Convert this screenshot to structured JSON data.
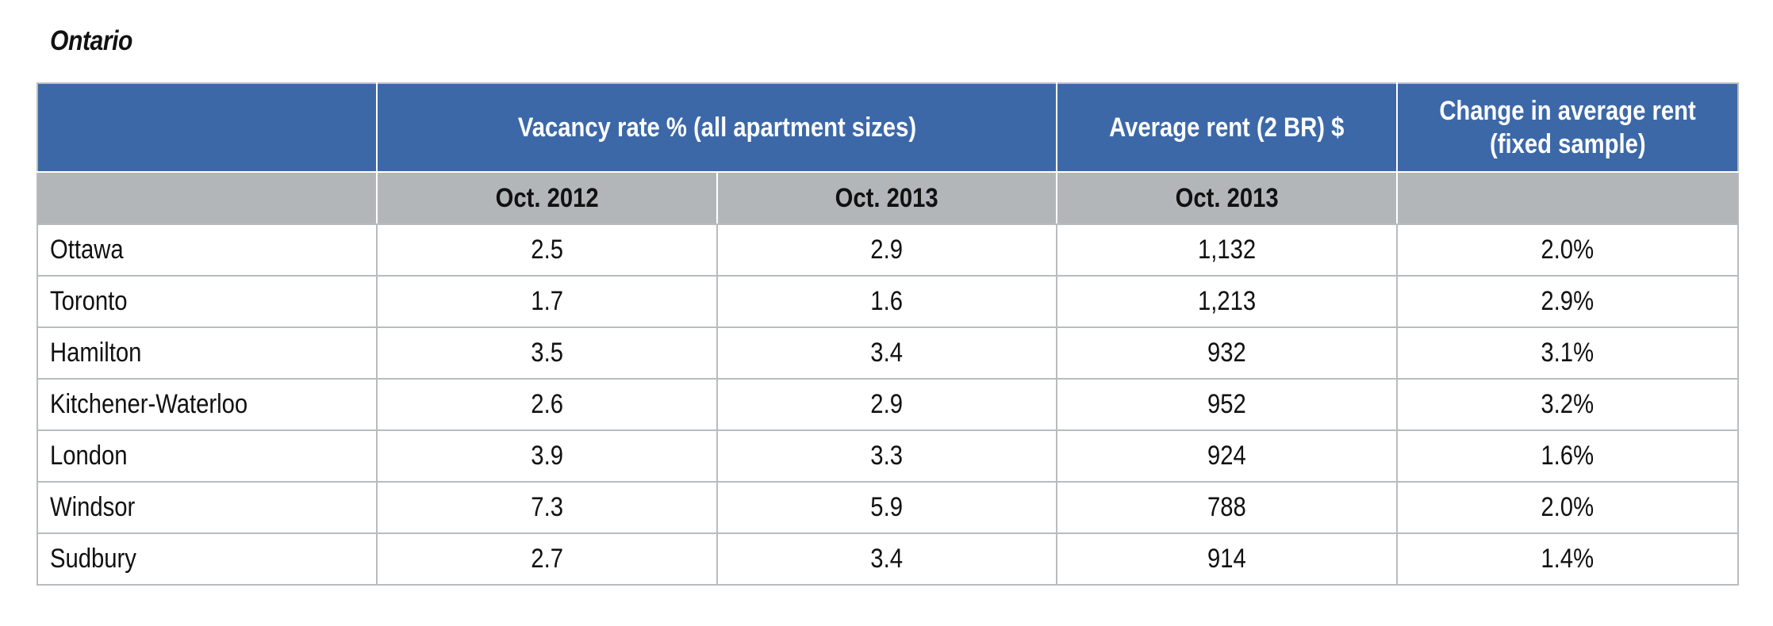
{
  "title": "Ontario",
  "header": {
    "col_city": "",
    "vacancy": "Vacancy rate % (all apartment sizes)",
    "rent": "Average rent (2 BR) $",
    "change_line1": "Change in average rent",
    "change_line2": "(fixed sample)"
  },
  "subheader": {
    "col_city": "",
    "vac_2012": "Oct. 2012",
    "vac_2013": "Oct. 2013",
    "rent_2013": "Oct. 2013",
    "change": ""
  },
  "rows": [
    {
      "city": "Ottawa",
      "vac_2012": "2.5",
      "vac_2013": "2.9",
      "rent": "1,132",
      "change": "2.0%"
    },
    {
      "city": "Toronto",
      "vac_2012": "1.7",
      "vac_2013": "1.6",
      "rent": "1,213",
      "change": "2.9%"
    },
    {
      "city": "Hamilton",
      "vac_2012": "3.5",
      "vac_2013": "3.4",
      "rent": "932",
      "change": "3.1%"
    },
    {
      "city": "Kitchener-Waterloo",
      "vac_2012": "2.6",
      "vac_2013": "2.9",
      "rent": "952",
      "change": "3.2%"
    },
    {
      "city": "London",
      "vac_2012": "3.9",
      "vac_2013": "3.3",
      "rent": "924",
      "change": "1.6%"
    },
    {
      "city": "Windsor",
      "vac_2012": "7.3",
      "vac_2013": "5.9",
      "rent": "788",
      "change": "2.0%"
    },
    {
      "city": "Sudbury",
      "vac_2012": "2.7",
      "vac_2013": "3.4",
      "rent": "914",
      "change": "1.4%"
    }
  ],
  "colors": {
    "header_blue": "#3c68a8",
    "subheader_gray": "#b3b6b9",
    "grid": "#b9bcbf"
  }
}
